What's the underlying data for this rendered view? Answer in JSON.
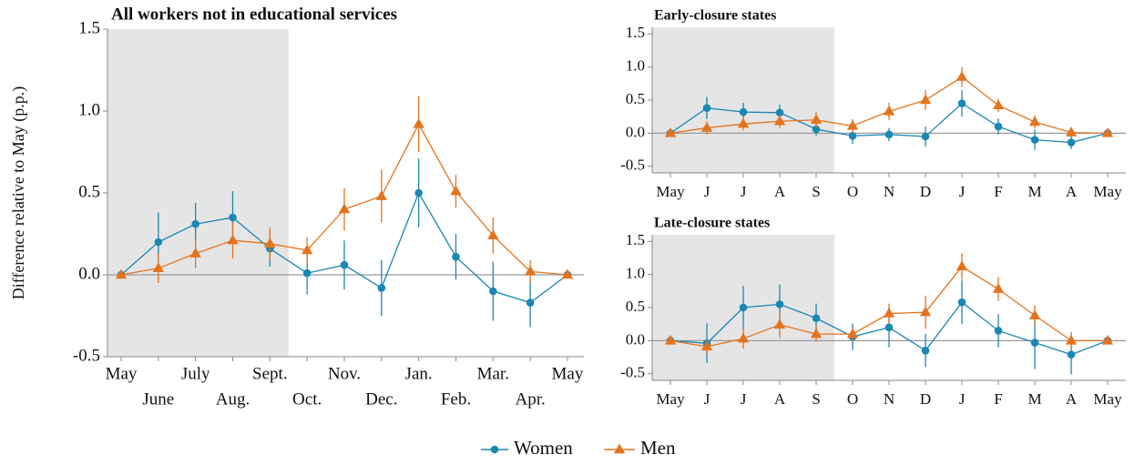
{
  "chart_data": [
    {
      "type": "line",
      "title": "All workers not in educational services",
      "ylabel": "Difference relative to May (p.p.)",
      "categories": [
        "May",
        "June",
        "July",
        "Aug.",
        "Sept.",
        "Oct.",
        "Nov.",
        "Dec.",
        "Jan.",
        "Feb.",
        "Mar.",
        "Apr.",
        "May"
      ],
      "ylim": [
        -0.5,
        1.5
      ],
      "yticks": [
        -0.5,
        {
          "value": 0,
          "label": "0.0"
        },
        0.5,
        {
          "value": 1,
          "label": "1.0"
        },
        1.5
      ],
      "series": [
        {
          "name": "Women",
          "color": "#1b87b3",
          "marker": "circle",
          "values": [
            0,
            0.2,
            0.31,
            0.35,
            0.16,
            0.01,
            0.06,
            -0.08,
            0.5,
            0.11,
            -0.1,
            -0.17,
            0
          ],
          "errors": [
            0,
            0.18,
            0.13,
            0.16,
            0.11,
            0.13,
            0.15,
            0.17,
            0.21,
            0.14,
            0.18,
            0.15,
            0
          ]
        },
        {
          "name": "Men",
          "color": "#e3741f",
          "marker": "triangle",
          "values": [
            0,
            0.04,
            0.13,
            0.21,
            0.19,
            0.15,
            0.4,
            0.48,
            0.92,
            0.51,
            0.24,
            0.02,
            0
          ],
          "errors": [
            0,
            0.09,
            0.09,
            0.11,
            0.1,
            0.08,
            0.13,
            0.16,
            0.17,
            0.1,
            0.11,
            0.07,
            0
          ]
        }
      ]
    },
    {
      "type": "line",
      "title": "Early-closure states",
      "categories": [
        "May",
        "J",
        "J",
        "A",
        "S",
        "O",
        "N",
        "D",
        "J",
        "F",
        "M",
        "A",
        "May"
      ],
      "ylim": [
        -0.6,
        1.6
      ],
      "yticks": [
        -0.5,
        {
          "value": 0,
          "label": "0.0"
        },
        0.5,
        {
          "value": 1,
          "label": "1.0"
        },
        1.5
      ],
      "series": [
        {
          "name": "Women",
          "color": "#1b87b3",
          "marker": "circle",
          "values": [
            0,
            0.38,
            0.32,
            0.31,
            0.06,
            -0.04,
            -0.02,
            -0.05,
            0.45,
            0.1,
            -0.1,
            -0.14,
            0
          ],
          "errors": [
            0,
            0.17,
            0.14,
            0.12,
            0.1,
            0.12,
            0.1,
            0.15,
            0.2,
            0.12,
            0.15,
            0.1,
            0
          ]
        },
        {
          "name": "Men",
          "color": "#e3741f",
          "marker": "triangle",
          "values": [
            0,
            0.08,
            0.14,
            0.18,
            0.2,
            0.11,
            0.33,
            0.5,
            0.85,
            0.42,
            0.17,
            0.01,
            0
          ],
          "errors": [
            0,
            0.1,
            0.1,
            0.1,
            0.12,
            0.1,
            0.13,
            0.15,
            0.15,
            0.1,
            0.1,
            0.05,
            0
          ]
        }
      ]
    },
    {
      "type": "line",
      "title": "Late-closure states",
      "categories": [
        "May",
        "J",
        "J",
        "A",
        "S",
        "O",
        "N",
        "D",
        "J",
        "F",
        "M",
        "A",
        "May"
      ],
      "ylim": [
        -0.6,
        1.6
      ],
      "yticks": [
        -0.5,
        {
          "value": 0,
          "label": "0.0"
        },
        0.5,
        {
          "value": 1,
          "label": "1.0"
        },
        1.5
      ],
      "series": [
        {
          "name": "Women",
          "color": "#1b87b3",
          "marker": "circle",
          "values": [
            0,
            -0.04,
            0.5,
            0.55,
            0.34,
            0.06,
            0.2,
            -0.15,
            0.58,
            0.15,
            -0.03,
            -0.21,
            0
          ],
          "errors": [
            0,
            0.3,
            0.33,
            0.3,
            0.22,
            0.2,
            0.3,
            0.25,
            0.33,
            0.25,
            0.4,
            0.3,
            0
          ]
        },
        {
          "name": "Men",
          "color": "#e3741f",
          "marker": "triangle",
          "values": [
            0,
            -0.09,
            0.03,
            0.24,
            0.1,
            0.1,
            0.41,
            0.43,
            1.12,
            0.78,
            0.38,
            0,
            0
          ],
          "errors": [
            0,
            0.1,
            0.15,
            0.2,
            0.12,
            0.1,
            0.15,
            0.25,
            0.2,
            0.18,
            0.15,
            0.13,
            0
          ]
        }
      ]
    }
  ]
}
